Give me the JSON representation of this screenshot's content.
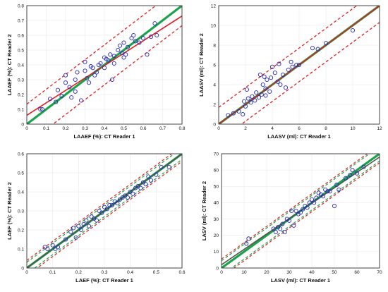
{
  "chart_data": [
    {
      "type": "scatter",
      "xlabel": "LAAEF (%): CT Reader 1",
      "ylabel": "LAAEF (%): CT Reader 2",
      "xlim": [
        0,
        0.8
      ],
      "ylim": [
        0,
        0.8
      ],
      "xticks": [
        "0",
        "0.1",
        "0.2",
        "0.3",
        "0.4",
        "0.5",
        "0.6",
        "0.7",
        "0.8"
      ],
      "yticks": [
        "0",
        "0.1",
        "0.2",
        "0.3",
        "0.4",
        "0.5",
        "0.6",
        "0.7",
        "0.8"
      ],
      "x": [
        0.07,
        0.08,
        0.12,
        0.15,
        0.16,
        0.18,
        0.2,
        0.2,
        0.22,
        0.23,
        0.25,
        0.25,
        0.26,
        0.28,
        0.3,
        0.3,
        0.31,
        0.32,
        0.33,
        0.34,
        0.35,
        0.36,
        0.37,
        0.38,
        0.4,
        0.4,
        0.41,
        0.42,
        0.43,
        0.44,
        0.45,
        0.45,
        0.47,
        0.48,
        0.49,
        0.5,
        0.5,
        0.51,
        0.52,
        0.54,
        0.55,
        0.56,
        0.58,
        0.6,
        0.62,
        0.64,
        0.66,
        0.67
      ],
      "y": [
        0.1,
        0.1,
        0.17,
        0.15,
        0.23,
        0.19,
        0.33,
        0.28,
        0.25,
        0.18,
        0.3,
        0.22,
        0.35,
        0.16,
        0.36,
        0.42,
        0.31,
        0.28,
        0.39,
        0.38,
        0.33,
        0.35,
        0.4,
        0.41,
        0.45,
        0.38,
        0.44,
        0.43,
        0.47,
        0.3,
        0.46,
        0.41,
        0.5,
        0.53,
        0.48,
        0.55,
        0.45,
        0.47,
        0.52,
        0.58,
        0.6,
        0.56,
        0.55,
        0.58,
        0.47,
        0.59,
        0.68,
        0.6
      ],
      "lines": {
        "identity": {
          "color": "#1aa34a"
        },
        "regression": {
          "x": [
            0,
            0.8
          ],
          "y": [
            0.06,
            0.73
          ],
          "color": "#e02020"
        },
        "limits": {
          "offset": 0.135,
          "color": "#e02020",
          "style": "dashed"
        }
      }
    },
    {
      "type": "scatter",
      "xlabel": "LAASV (ml): CT Reader 1",
      "ylabel": "LAASV (ml): CT Reader 2",
      "xlim": [
        0,
        12
      ],
      "ylim": [
        0,
        12
      ],
      "xticks": [
        "0",
        "2",
        "4",
        "6",
        "8",
        "10",
        "12"
      ],
      "yticks": [
        "0",
        "2",
        "4",
        "6",
        "8",
        "10",
        "12"
      ],
      "x": [
        0.7,
        1.1,
        1.5,
        1.8,
        1.9,
        2.0,
        2.1,
        2.2,
        2.4,
        2.5,
        2.7,
        2.8,
        3.0,
        3.1,
        3.2,
        3.3,
        3.4,
        3.5,
        3.5,
        3.6,
        3.8,
        3.9,
        4.0,
        4.2,
        4.4,
        4.5,
        4.6,
        4.8,
        5.0,
        5.2,
        5.4,
        5.5,
        5.8,
        6.0,
        7.0,
        7.4,
        8.0,
        10.0
      ],
      "y": [
        0.9,
        1.1,
        1.3,
        1.0,
        2.3,
        1.8,
        3.5,
        2.6,
        2.2,
        2.8,
        2.4,
        3.2,
        2.7,
        5.0,
        3.0,
        4.0,
        4.8,
        3.6,
        2.9,
        4.5,
        3.3,
        4.7,
        5.8,
        5.2,
        4.3,
        6.1,
        4.0,
        5.0,
        3.7,
        5.5,
        6.3,
        5.8,
        6.0,
        6.0,
        7.7,
        7.6,
        8.2,
        9.5
      ],
      "lines": {
        "identity": {
          "color": "#1aa34a"
        },
        "regression": {
          "x": [
            0,
            12
          ],
          "y": [
            0,
            12
          ],
          "color": "#e02020"
        },
        "limits": {
          "offset": 1.7,
          "color": "#e02020",
          "style": "dashed"
        }
      }
    },
    {
      "type": "scatter",
      "xlabel": "LAEF (%): CT Reader 1",
      "ylabel": "LAEF (%): CT Reader 2",
      "xlim": [
        0,
        0.6
      ],
      "ylim": [
        0,
        0.6
      ],
      "xticks": [
        "0",
        "0.1",
        "0.2",
        "0.3",
        "0.4",
        "0.5",
        "0.6"
      ],
      "yticks": [
        "0",
        "0.1",
        "0.2",
        "0.3",
        "0.4",
        "0.5",
        "0.6"
      ],
      "x": [
        0.07,
        0.08,
        0.1,
        0.11,
        0.12,
        0.15,
        0.17,
        0.18,
        0.19,
        0.2,
        0.21,
        0.22,
        0.23,
        0.24,
        0.25,
        0.26,
        0.27,
        0.28,
        0.29,
        0.3,
        0.31,
        0.32,
        0.33,
        0.34,
        0.35,
        0.36,
        0.37,
        0.38,
        0.39,
        0.4,
        0.41,
        0.42,
        0.43,
        0.44,
        0.45,
        0.46,
        0.47,
        0.48,
        0.5,
        0.52,
        0.55
      ],
      "y": [
        0.11,
        0.1,
        0.12,
        0.1,
        0.11,
        0.15,
        0.19,
        0.21,
        0.16,
        0.22,
        0.2,
        0.23,
        0.25,
        0.22,
        0.27,
        0.26,
        0.25,
        0.3,
        0.29,
        0.32,
        0.31,
        0.33,
        0.33,
        0.35,
        0.34,
        0.36,
        0.37,
        0.38,
        0.37,
        0.4,
        0.39,
        0.42,
        0.43,
        0.42,
        0.45,
        0.44,
        0.48,
        0.46,
        0.49,
        0.53,
        0.53
      ],
      "lines": {
        "identity": {
          "color": "#1aa34a"
        },
        "regression": {
          "x": [
            0,
            0.6
          ],
          "y": [
            0,
            0.6
          ],
          "color": "#555555"
        },
        "limits_outer": {
          "offset": 0.04,
          "color": "#e02020",
          "style": "dashed"
        },
        "limits_inner": {
          "offset": 0.03,
          "color": "#1aa34a",
          "style": "dashed"
        }
      }
    },
    {
      "type": "scatter",
      "xlabel": "LASV (ml): CT Reader 1",
      "ylabel": "LASV (ml): CT Reader 2",
      "xlim": [
        0,
        70
      ],
      "ylim": [
        0,
        70
      ],
      "xticks": [
        "0",
        "10",
        "20",
        "30",
        "40",
        "50",
        "60",
        "70"
      ],
      "yticks": [
        "0",
        "10",
        "20",
        "30",
        "40",
        "50",
        "60",
        "70"
      ],
      "x": [
        11,
        12,
        23,
        24,
        25,
        26,
        27,
        28,
        29,
        30,
        31,
        32,
        33,
        34,
        35,
        36,
        37,
        38,
        39,
        40,
        41,
        42,
        43,
        44,
        45,
        46,
        47,
        48,
        50,
        51,
        52,
        55,
        57,
        58,
        60,
        63
      ],
      "y": [
        15,
        18,
        24,
        22,
        25,
        24,
        27,
        22,
        30,
        29,
        35,
        26,
        35,
        33,
        34,
        36,
        38,
        37,
        40,
        42,
        40,
        43,
        46,
        45,
        44,
        48,
        47,
        47,
        38,
        51,
        48,
        55,
        57,
        60,
        58,
        62
      ],
      "lines": {
        "identity": {
          "color": "#1aa34a"
        },
        "regression": {
          "x": [
            0,
            70
          ],
          "y": [
            2,
            68
          ],
          "color": "#555555"
        },
        "limits_outer": {
          "offset": 5.5,
          "color": "#e02020",
          "style": "dashed"
        },
        "limits_inner": {
          "offset": 4.5,
          "color": "#1aa34a",
          "style": "dashed"
        }
      }
    }
  ]
}
